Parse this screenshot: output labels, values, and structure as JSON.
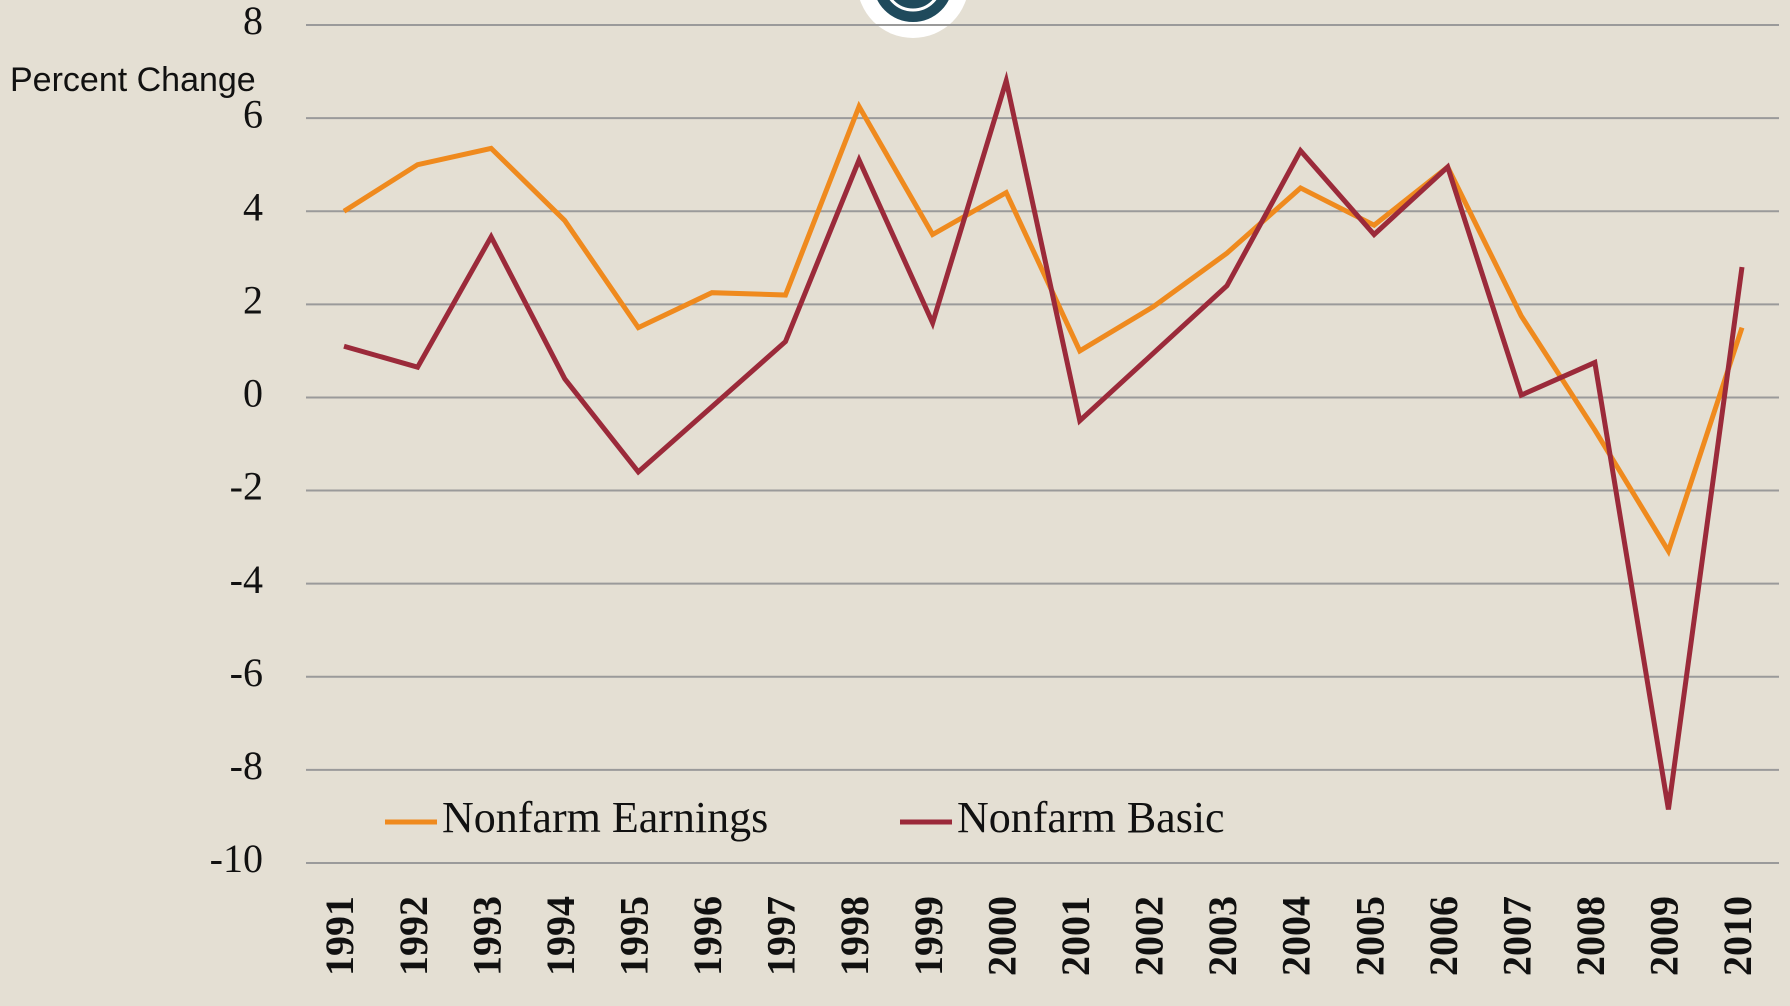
{
  "chart_data": {
    "type": "line",
    "y_axis_label": "Percent Change",
    "categories": [
      "1991",
      "1992",
      "1993",
      "1994",
      "1995",
      "1996",
      "1997",
      "1998",
      "1999",
      "2000",
      "2001",
      "2002",
      "2003",
      "2004",
      "2005",
      "2006",
      "2007",
      "2008",
      "2009",
      "2010"
    ],
    "series": [
      {
        "name": "Nonfarm Earnings",
        "color": "#ef8a1e",
        "values": [
          4.0,
          5.0,
          5.35,
          3.8,
          1.5,
          2.25,
          2.2,
          6.25,
          3.5,
          4.4,
          1.0,
          1.95,
          3.1,
          4.5,
          3.7,
          4.95,
          1.75,
          -0.7,
          -3.3,
          1.5
        ]
      },
      {
        "name": "Nonfarm Basic",
        "color": "#9b2a3a",
        "values": [
          1.1,
          0.65,
          3.45,
          0.4,
          -1.6,
          -0.2,
          1.2,
          5.1,
          1.6,
          6.8,
          -0.5,
          0.95,
          2.4,
          5.3,
          3.5,
          4.95,
          0.05,
          0.75,
          -8.85,
          2.8
        ]
      }
    ],
    "ylim": [
      -10,
      8
    ],
    "yticks": [
      8,
      6,
      4,
      2,
      0,
      -2,
      -4,
      -6,
      -8,
      -10
    ],
    "grid": true,
    "legend": "bottom-left"
  }
}
